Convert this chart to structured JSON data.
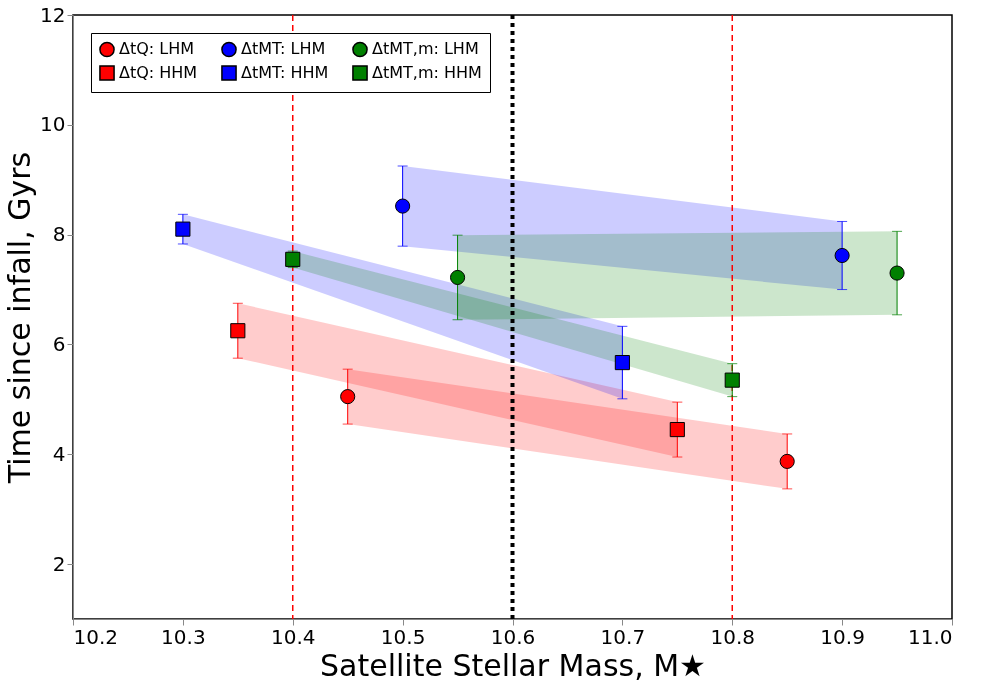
{
  "chart_data": {
    "type": "scatter",
    "xlabel": "Satellite Stellar Mass, M★",
    "ylabel": "Time since infall, Gyrs",
    "xlim": [
      10.2,
      11.0
    ],
    "xticks": [
      10.2,
      10.3,
      10.4,
      10.5,
      10.6,
      10.7,
      10.8,
      10.9,
      {
        "value": 11.0,
        "label": "11.0"
      }
    ],
    "ylim": [
      1,
      12
    ],
    "yticks": [
      2,
      4,
      6,
      8,
      10,
      12
    ],
    "grid": false,
    "legend": "top left",
    "series": [
      {
        "name": "ΔtQ: LHM",
        "color": "#ff0000",
        "marker": "circle",
        "x": [
          10.45,
          10.85
        ],
        "values": [
          5.05,
          3.87
        ],
        "errors": [
          0.5,
          0.5
        ],
        "lower": [
          4.55,
          3.37
        ],
        "upper": [
          5.55,
          4.37
        ]
      },
      {
        "name": "ΔtQ: HHM",
        "color": "#ff0000",
        "marker": "square",
        "x": [
          10.35,
          10.75
        ],
        "values": [
          6.25,
          4.45
        ],
        "errors": [
          0.5,
          0.5
        ],
        "lower": [
          5.75,
          3.95
        ],
        "upper": [
          6.75,
          4.95
        ]
      },
      {
        "name": "ΔtMT: LHM",
        "color": "#0000ff",
        "marker": "circle",
        "x": [
          10.5,
          10.9
        ],
        "values": [
          8.52,
          7.62
        ],
        "errors": [
          0.73,
          0.62
        ],
        "lower": [
          7.79,
          7.0
        ],
        "upper": [
          9.25,
          8.24
        ]
      },
      {
        "name": "ΔtMT: HHM",
        "color": "#0000ff",
        "marker": "square",
        "x": [
          10.3,
          10.7
        ],
        "values": [
          8.1,
          5.67
        ],
        "errors": [
          0.27,
          0.66
        ],
        "lower": [
          7.83,
          5.01
        ],
        "upper": [
          8.37,
          6.33
        ]
      },
      {
        "name": "ΔtMT,m: LHM",
        "color": "#008000",
        "marker": "circle",
        "x": [
          10.55,
          10.95
        ],
        "values": [
          7.22,
          7.3
        ],
        "errors": [
          0.77,
          0.76
        ],
        "lower": [
          6.45,
          6.54
        ],
        "upper": [
          7.99,
          8.06
        ]
      },
      {
        "name": "ΔtMT,m: HHM",
        "color": "#008000",
        "marker": "square",
        "x": [
          10.4,
          10.8
        ],
        "values": [
          7.55,
          5.35
        ],
        "errors": [
          0.15,
          0.3
        ],
        "lower": [
          7.4,
          5.05
        ],
        "upper": [
          7.7,
          5.65
        ]
      }
    ],
    "ref_lines": [
      {
        "axis": "x",
        "value": 10.4,
        "color": "#ff0000",
        "line_style": "dashed"
      },
      {
        "axis": "x",
        "value": 10.6,
        "color": "#000000",
        "line_style": "dotted"
      },
      {
        "axis": "x",
        "value": 10.8,
        "color": "#ff0000",
        "line_style": "dashed"
      }
    ]
  }
}
